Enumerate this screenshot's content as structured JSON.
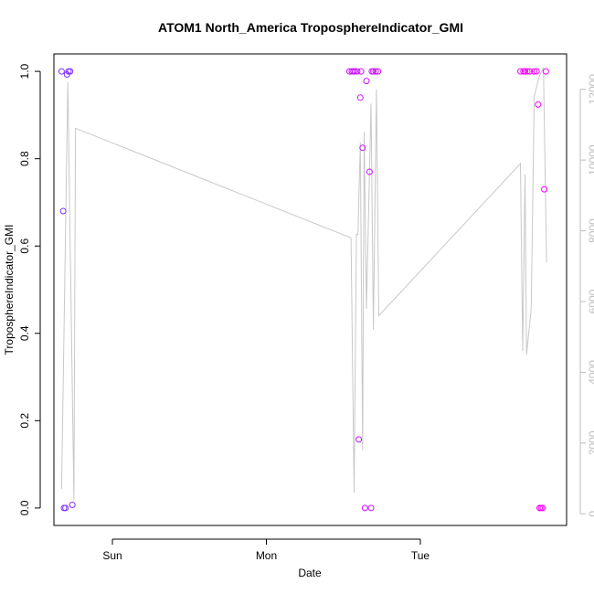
{
  "chart_data": {
    "type": "scatter",
    "title": "ATOM1 North_America TroposphereIndicator_GMI",
    "xlabel": "Date",
    "ylabel": "TroposphereIndicator_GMI",
    "x_ticks": [
      "Sun",
      "Mon",
      "Tue"
    ],
    "x_range_days": [
      -0.38,
      2.95
    ],
    "y_ticks": [
      "0.0",
      "0.2",
      "0.4",
      "0.6",
      "0.8",
      "1.0"
    ],
    "ylim": [
      -0.04,
      1.04
    ],
    "y2_ticks": [
      "0",
      "2000",
      "4000",
      "6000",
      "8000",
      "10000",
      "12000"
    ],
    "y2lim": [
      -330,
      13000
    ],
    "grid": false,
    "legend": "none",
    "colors": {
      "line": "#c8c8c8",
      "right_axis": "#bdbdbd",
      "point_start": "#7f33ff",
      "point_end": "#ff00ff"
    },
    "points_day_value": [
      [
        -0.33,
        1.0
      ],
      [
        -0.32,
        0.68
      ],
      [
        -0.315,
        0.0
      ],
      [
        -0.305,
        0.0
      ],
      [
        -0.295,
        0.993
      ],
      [
        -0.285,
        1.0
      ],
      [
        -0.275,
        1.0
      ],
      [
        -0.26,
        0.007
      ],
      [
        1.54,
        1.0
      ],
      [
        1.555,
        1.0
      ],
      [
        1.565,
        1.0
      ],
      [
        1.575,
        1.0
      ],
      [
        1.59,
        1.0
      ],
      [
        1.6,
        0.157
      ],
      [
        1.61,
        0.94
      ],
      [
        1.615,
        1.0
      ],
      [
        1.625,
        0.825
      ],
      [
        1.64,
        0.0
      ],
      [
        1.65,
        0.978
      ],
      [
        1.67,
        0.77
      ],
      [
        1.68,
        0.0
      ],
      [
        1.685,
        1.0
      ],
      [
        1.695,
        1.0
      ],
      [
        1.71,
        1.0
      ],
      [
        1.725,
        1.0
      ],
      [
        2.65,
        1.0
      ],
      [
        2.67,
        1.0
      ],
      [
        2.68,
        1.0
      ],
      [
        2.695,
        1.0
      ],
      [
        2.71,
        1.0
      ],
      [
        2.74,
        1.0
      ],
      [
        2.755,
        1.0
      ],
      [
        2.765,
        0.924
      ],
      [
        2.775,
        0.0
      ],
      [
        2.785,
        0.0
      ],
      [
        2.795,
        0.0
      ],
      [
        2.805,
        0.73
      ],
      [
        2.815,
        1.0
      ]
    ],
    "secondary_line_day_value": [
      [
        -0.33,
        700
      ],
      [
        -0.29,
        12200
      ],
      [
        -0.25,
        400
      ],
      [
        -0.24,
        10900
      ],
      [
        1.55,
        7800
      ],
      [
        1.57,
        600
      ],
      [
        1.585,
        7900
      ],
      [
        1.595,
        7900
      ],
      [
        1.61,
        10500
      ],
      [
        1.625,
        1800
      ],
      [
        1.635,
        10800
      ],
      [
        1.65,
        5800
      ],
      [
        1.68,
        11600
      ],
      [
        1.695,
        5200
      ],
      [
        1.715,
        12000
      ],
      [
        1.73,
        5600
      ],
      [
        2.65,
        9900
      ],
      [
        2.665,
        4600
      ],
      [
        2.68,
        9600
      ],
      [
        2.69,
        4500
      ],
      [
        2.72,
        5800
      ],
      [
        2.74,
        11800
      ],
      [
        2.775,
        12400
      ],
      [
        2.8,
        12600
      ],
      [
        2.82,
        7100
      ]
    ]
  }
}
